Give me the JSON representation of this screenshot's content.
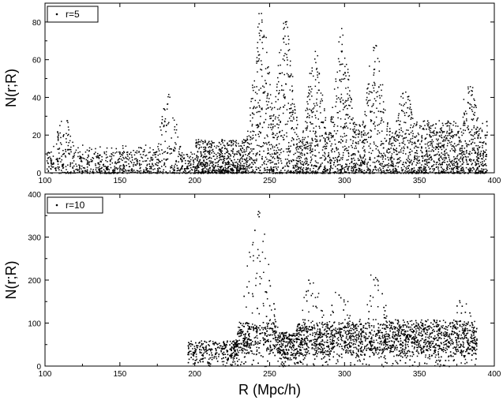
{
  "chart_data": [
    {
      "type": "scatter",
      "title": "",
      "xlabel": "",
      "ylabel": "N(r;R)",
      "xlim": [
        100,
        400
      ],
      "ylim": [
        0,
        90
      ],
      "xticks": [
        "100",
        "150",
        "200",
        "250",
        "300",
        "350",
        "400"
      ],
      "yticks": [
        "0",
        "20",
        "40",
        "60",
        "80"
      ],
      "legend_position": "top-left",
      "grid": false,
      "series": [
        {
          "name": "r=5",
          "color": "#000000",
          "data_range_x": [
            101,
            395
          ],
          "peaks": [
            {
              "x": 112,
              "y": 32
            },
            {
              "x": 182,
              "y": 43
            },
            {
              "x": 244,
              "y": 88
            },
            {
              "x": 260,
              "y": 82
            },
            {
              "x": 280,
              "y": 66
            },
            {
              "x": 298,
              "y": 77
            },
            {
              "x": 320,
              "y": 72
            },
            {
              "x": 340,
              "y": 46
            },
            {
              "x": 383,
              "y": 50
            }
          ]
        }
      ]
    },
    {
      "type": "scatter",
      "title": "",
      "xlabel": "R (Mpc/h)",
      "ylabel": "N(r;R)",
      "xlim": [
        100,
        400
      ],
      "ylim": [
        0,
        400
      ],
      "xticks": [
        "100",
        "150",
        "200",
        "250",
        "300",
        "350",
        "400"
      ],
      "yticks": [
        "0",
        "100",
        "200",
        "300",
        "400"
      ],
      "legend_position": "top-left",
      "grid": false,
      "series": [
        {
          "name": "r=10",
          "color": "#000000",
          "data_range_x": [
            195,
            388
          ],
          "peaks": [
            {
              "x": 242,
              "y": 365
            },
            {
              "x": 278,
              "y": 210
            },
            {
              "x": 296,
              "y": 205
            },
            {
              "x": 320,
              "y": 235
            },
            {
              "x": 347,
              "y": 120
            },
            {
              "x": 378,
              "y": 160
            }
          ]
        }
      ]
    }
  ]
}
